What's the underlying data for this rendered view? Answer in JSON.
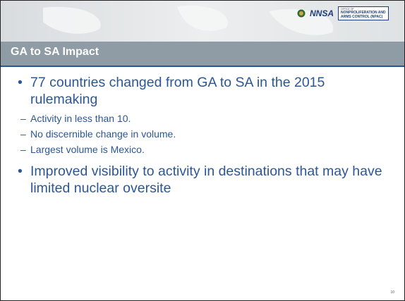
{
  "header": {
    "logo": "NNSA",
    "office": [
      "OFFICE OF",
      "NONPROLIFERATION AND",
      "ARMS CONTROL (NPAC)"
    ]
  },
  "title": "GA to SA Impact",
  "bullets": [
    {
      "text": "77 countries changed from GA to SA in the 2015 rulemaking",
      "sub": [
        "Activity in less than 10.",
        "No discernible change in volume.",
        "Largest volume is Mexico."
      ]
    },
    {
      "text": "Improved visibility to activity in destinations that may have limited nuclear oversite",
      "sub": []
    }
  ],
  "page_number": "10"
}
